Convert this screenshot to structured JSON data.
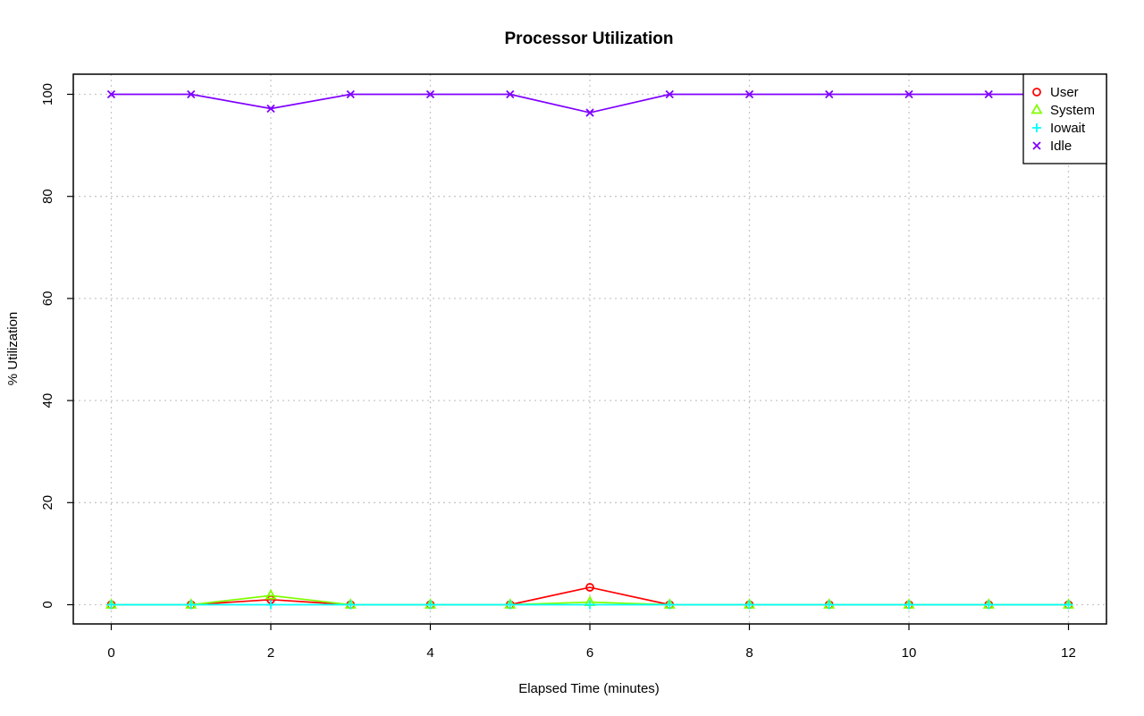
{
  "chart_data": {
    "type": "line",
    "title": "Processor Utilization",
    "xlabel": "Elapsed Time (minutes)",
    "ylabel": "% Utilization",
    "xlim": [
      -0.5,
      12.5
    ],
    "ylim": [
      -4,
      104
    ],
    "x_ticks": [
      0,
      2,
      4,
      6,
      8,
      10,
      12
    ],
    "y_ticks": [
      0,
      20,
      40,
      60,
      80,
      100
    ],
    "grid": true,
    "legend_position": "top-right",
    "x": [
      0,
      1,
      2,
      3,
      4,
      5,
      6,
      7,
      8,
      9,
      10,
      11,
      12
    ],
    "series": [
      {
        "name": "User",
        "color": "#ff0000",
        "marker": "circle",
        "values": [
          0,
          0,
          1.0,
          0,
          0,
          0,
          3.4,
          0,
          0,
          0,
          0,
          0,
          0
        ]
      },
      {
        "name": "System",
        "color": "#80ff00",
        "marker": "triangle",
        "values": [
          0,
          0,
          1.8,
          0,
          0,
          0,
          0.5,
          0,
          0,
          0,
          0,
          0,
          0
        ]
      },
      {
        "name": "Iowait",
        "color": "#00ffff",
        "marker": "plus",
        "values": [
          0,
          0,
          0,
          0,
          0,
          0,
          0,
          0,
          0,
          0,
          0,
          0,
          0
        ]
      },
      {
        "name": "Idle",
        "color": "#8000ff",
        "marker": "cross",
        "values": [
          100,
          100,
          97.2,
          100,
          100,
          100,
          96.4,
          100,
          100,
          100,
          100,
          100,
          100
        ]
      }
    ]
  }
}
